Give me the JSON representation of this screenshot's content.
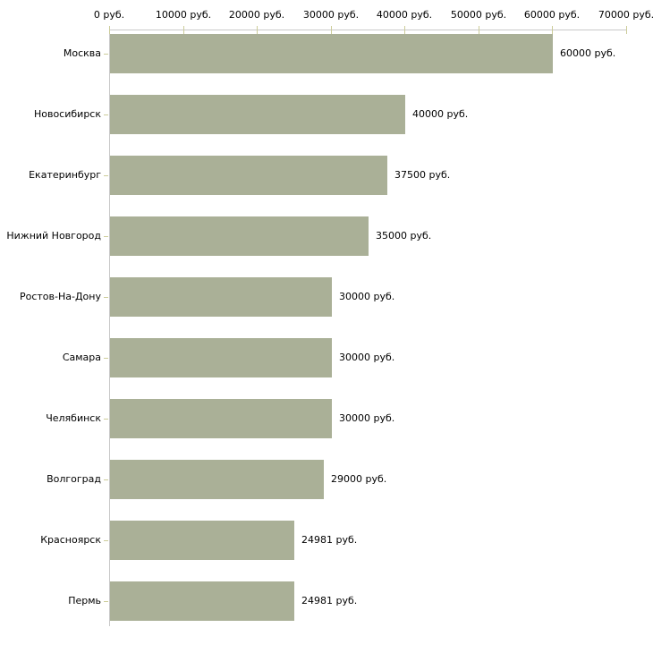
{
  "chart_data": {
    "type": "bar",
    "orientation": "horizontal",
    "title": "",
    "categories": [
      "Москва",
      "Новосибирск",
      "Екатеринбург",
      "Нижний Новгород",
      "Ростов-На-Дону",
      "Самара",
      "Челябинск",
      "Волгоград",
      "Красноярск",
      "Пермь"
    ],
    "values": [
      60000,
      40000,
      37500,
      35000,
      30000,
      30000,
      30000,
      29000,
      24981,
      24981
    ],
    "value_labels": [
      "60000 руб.",
      "40000 руб.",
      "37500 руб.",
      "35000 руб.",
      "30000 руб.",
      "30000 руб.",
      "30000 руб.",
      "29000 руб.",
      "24981 руб.",
      "24981 руб."
    ],
    "x_axis": {
      "position": "top",
      "min": 0,
      "max": 70000,
      "ticks": [
        0,
        10000,
        20000,
        30000,
        40000,
        50000,
        60000,
        70000
      ],
      "tick_labels": [
        "0 руб.",
        "10000 руб.",
        "20000 руб.",
        "30000 руб.",
        "40000 руб.",
        "50000 руб.",
        "60000 руб.",
        "70000 руб."
      ]
    },
    "legend": "none",
    "grid": "off",
    "colors": {
      "bar": "#aab097",
      "axis_line": "#c8c8c8",
      "tick_mark": "#cccc99",
      "text": "#000000",
      "background": "#ffffff"
    }
  }
}
